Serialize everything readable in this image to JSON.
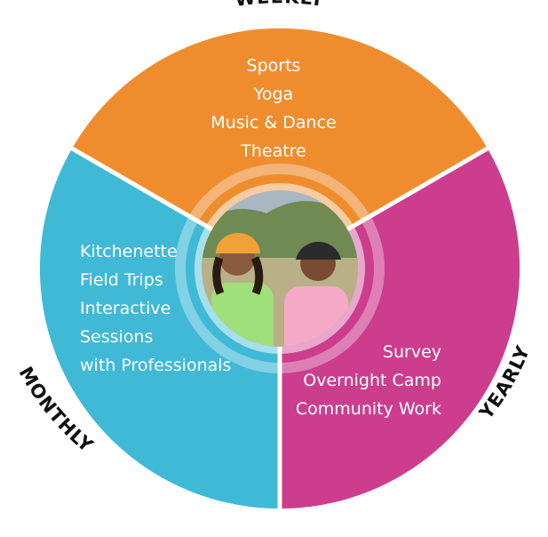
{
  "diagram": {
    "segments": [
      {
        "id": "weekly",
        "label": "WEEKLY",
        "color": "#ef8d2e",
        "items": [
          "Sports",
          "Yoga",
          "Music & Dance",
          "Theatre"
        ]
      },
      {
        "id": "monthly",
        "label": "MONTHLY",
        "color": "#3fb9d6",
        "items": [
          "Kitchenette",
          "Field Trips",
          "Interactive",
          "Sessions",
          "with Professionals"
        ]
      },
      {
        "id": "yearly",
        "label": "YEARLY",
        "color": "#cc3d8e",
        "items": [
          "Survey",
          "Overnight Camp",
          "Community Work"
        ]
      }
    ],
    "center_photo": {
      "description_icon": "kids-photo"
    }
  }
}
